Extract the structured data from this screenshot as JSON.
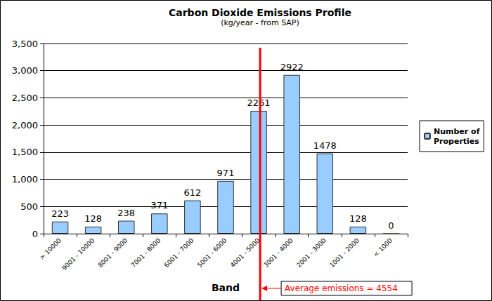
{
  "chart_data": {
    "type": "bar",
    "title": "Carbon Dioxide Emissions Profile",
    "subtitle": "(kg/year - from SAP)",
    "x_label": "Band",
    "categories": [
      "> 10000",
      "9001 - 10000",
      "8001 - 9000",
      "7001 - 8000",
      "6001 - 7000",
      "5001 - 6000",
      "4001 - 5000",
      "3001 - 4000",
      "2001 - 3000",
      "1001 - 2000",
      "< 1000"
    ],
    "series": [
      {
        "name": "Number of Properties",
        "color": "#99ccff",
        "values": [
          223,
          128,
          238,
          371,
          612,
          971,
          2261,
          2922,
          1478,
          128,
          0
        ]
      }
    ],
    "ylim": [
      0,
      3500
    ],
    "yticks": [
      0,
      500,
      1000,
      1500,
      2000,
      2500,
      3000,
      3500
    ],
    "grid": true,
    "legend": "right",
    "data_labels": true,
    "annotations": [
      {
        "text": "Average emissions = 4554",
        "category": "4001 - 5000",
        "color": "#ff0000"
      }
    ]
  }
}
